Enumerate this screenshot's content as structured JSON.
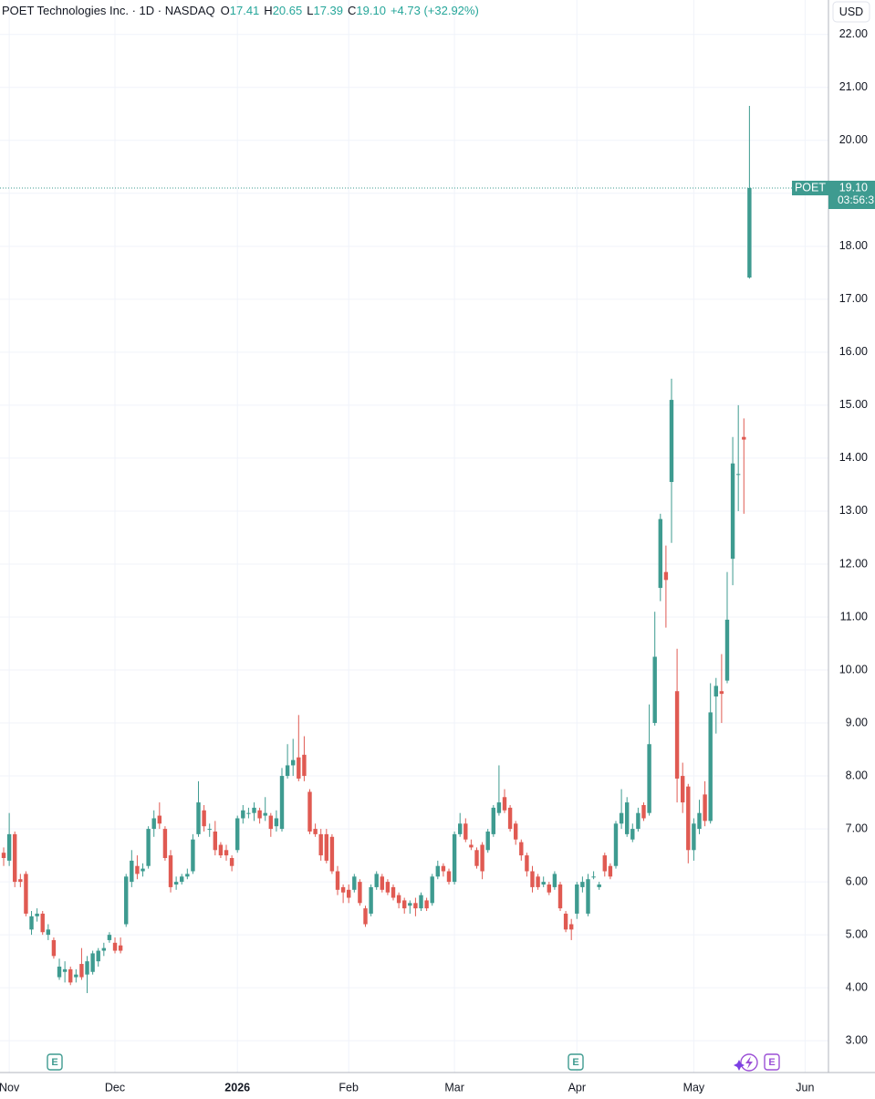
{
  "chart_data": {
    "type": "candlestick",
    "title": "POET Technologies Inc. · 1D · NASDAQ",
    "ohlc_legend": [
      {
        "label": "O",
        "value": "17.41"
      },
      {
        "label": "H",
        "value": "20.65"
      },
      {
        "label": "L",
        "value": "17.39"
      },
      {
        "label": "C",
        "value": "19.10"
      }
    ],
    "change": "+4.73 (+32.92%)",
    "currency": "USD",
    "symbol": "POET",
    "last_price_label": "19.10",
    "countdown": "03:56:3",
    "up_color": "#3e9b90",
    "down_color": "#e05a52",
    "grid": true,
    "events": [
      {
        "label": "E"
      },
      {
        "label": "E"
      },
      {
        "label": "E"
      }
    ],
    "ylim": [
      2.4,
      22.65
    ],
    "yticks": [
      {
        "value": 3,
        "label": "3.00"
      },
      {
        "value": 4,
        "label": "4.00"
      },
      {
        "value": 5,
        "label": "5.00"
      },
      {
        "value": 6,
        "label": "6.00"
      },
      {
        "value": 7,
        "label": "7.00"
      },
      {
        "value": 8,
        "label": "8.00"
      },
      {
        "value": 9,
        "label": "9.00"
      },
      {
        "value": 10,
        "label": "10.00"
      },
      {
        "value": 11,
        "label": "11.00"
      },
      {
        "value": 12,
        "label": "12.00"
      },
      {
        "value": 13,
        "label": "13.00"
      },
      {
        "value": 14,
        "label": "14.00"
      },
      {
        "value": 15,
        "label": "15.00"
      },
      {
        "value": 16,
        "label": "16.00"
      },
      {
        "value": 17,
        "label": "17.00"
      },
      {
        "value": 18,
        "label": "18.00"
      },
      {
        "value": 19,
        "label": "19.00"
      },
      {
        "value": 20,
        "label": "20.00"
      },
      {
        "value": 21,
        "label": "21.00"
      },
      {
        "value": 22,
        "label": "22.00"
      }
    ],
    "xlim": [
      -0.66,
      148.2
    ],
    "xticks": [
      {
        "value": 1,
        "label": "Nov"
      },
      {
        "value": 20,
        "label": "Dec"
      },
      {
        "value": 42,
        "label": "2026"
      },
      {
        "value": 62,
        "label": "Feb"
      },
      {
        "value": 81,
        "label": "Mar"
      },
      {
        "value": 103,
        "label": "Apr"
      },
      {
        "value": 124,
        "label": "May"
      },
      {
        "value": 144,
        "label": "Jun"
      }
    ],
    "open": [
      6.55,
      6.4,
      6.9,
      6.05,
      6.15,
      5.1,
      5.35,
      5.4,
      5.0,
      4.9,
      4.2,
      4.3,
      4.35,
      4.2,
      4.45,
      4.25,
      4.3,
      4.5,
      4.7,
      4.9,
      4.85,
      4.8,
      5.2,
      6.0,
      6.3,
      6.2,
      6.3,
      7.0,
      7.25,
      7.0,
      6.5,
      5.95,
      6.0,
      6.1,
      6.2,
      6.9,
      7.35,
      7.0,
      6.95,
      6.7,
      6.6,
      6.45,
      6.6,
      7.2,
      7.3,
      7.3,
      7.35,
      7.25,
      7.25,
      7.05,
      7.0,
      8.0,
      8.2,
      8.35,
      8.4,
      7.7,
      7.0,
      6.9,
      6.9,
      6.85,
      6.2,
      5.9,
      5.85,
      5.85,
      6.0,
      5.5,
      5.4,
      5.9,
      6.1,
      6.0,
      5.9,
      5.75,
      5.65,
      5.55,
      5.6,
      5.5,
      5.65,
      5.6,
      6.1,
      6.3,
      6.2,
      6.0,
      6.9,
      7.1,
      6.7,
      6.6,
      6.7,
      6.6,
      6.9,
      7.3,
      7.6,
      7.4,
      7.1,
      6.75,
      6.5,
      6.2,
      6.1,
      5.95,
      5.95,
      5.9,
      5.95,
      5.4,
      5.2,
      5.4,
      5.9,
      5.4,
      6.1,
      5.9,
      6.5,
      6.3,
      6.3,
      7.1,
      6.9,
      6.8,
      7.0,
      7.45,
      7.3,
      9.0,
      11.55,
      11.85,
      13.55,
      9.6,
      8.0,
      7.8,
      6.6,
      7.0,
      7.65,
      7.15,
      9.5,
      9.6,
      9.8,
      12.1,
      13.7,
      14.4,
      17.41
    ],
    "high": [
      6.65,
      7.3,
      6.95,
      6.15,
      6.2,
      5.45,
      5.5,
      5.45,
      5.2,
      4.95,
      4.55,
      4.5,
      4.4,
      4.35,
      4.75,
      4.6,
      4.7,
      4.75,
      4.85,
      5.05,
      4.95,
      4.95,
      6.15,
      6.6,
      6.5,
      6.35,
      7.05,
      7.35,
      7.5,
      7.05,
      6.6,
      6.1,
      6.15,
      6.25,
      6.9,
      7.9,
      7.45,
      7.1,
      7.15,
      6.75,
      6.7,
      6.5,
      7.25,
      7.45,
      7.4,
      7.5,
      7.4,
      7.6,
      7.3,
      7.35,
      8.15,
      8.6,
      8.7,
      9.15,
      8.75,
      7.75,
      7.1,
      7.0,
      7.0,
      6.9,
      6.3,
      5.95,
      5.95,
      6.15,
      6.05,
      5.55,
      5.95,
      6.2,
      6.15,
      6.05,
      5.95,
      5.8,
      5.7,
      5.65,
      5.7,
      5.8,
      5.7,
      6.15,
      6.4,
      6.35,
      6.25,
      6.95,
      7.3,
      7.2,
      6.8,
      6.65,
      6.75,
      7.0,
      7.45,
      8.2,
      7.75,
      7.45,
      7.15,
      6.8,
      6.55,
      6.3,
      6.15,
      6.1,
      6.0,
      6.2,
      6.0,
      5.45,
      5.3,
      6.0,
      6.1,
      6.15,
      6.2,
      6.0,
      6.55,
      6.35,
      7.15,
      7.75,
      7.6,
      7.1,
      7.4,
      7.5,
      9.35,
      11.1,
      12.95,
      12.35,
      15.5,
      10.4,
      8.25,
      7.85,
      7.2,
      7.55,
      7.9,
      9.75,
      9.85,
      10.3,
      11.85,
      14.4,
      15.0,
      14.75,
      20.65
    ],
    "low": [
      6.3,
      6.3,
      5.9,
      5.9,
      5.35,
      5.0,
      5.25,
      5.0,
      4.9,
      4.55,
      4.15,
      4.1,
      4.05,
      4.1,
      4.15,
      3.9,
      4.25,
      4.4,
      4.6,
      4.85,
      4.65,
      4.65,
      5.15,
      5.9,
      6.05,
      6.1,
      6.25,
      6.85,
      7.0,
      6.4,
      5.8,
      5.85,
      5.95,
      6.05,
      6.15,
      6.85,
      6.95,
      6.85,
      6.5,
      6.45,
      6.4,
      6.2,
      6.55,
      7.1,
      7.2,
      7.15,
      7.1,
      7.15,
      6.85,
      6.95,
      6.95,
      7.95,
      8.0,
      7.9,
      7.9,
      6.9,
      6.85,
      6.4,
      6.35,
      6.15,
      5.75,
      5.6,
      5.6,
      5.8,
      5.55,
      5.15,
      5.35,
      5.85,
      5.8,
      5.75,
      5.65,
      5.5,
      5.4,
      5.4,
      5.35,
      5.45,
      5.45,
      5.55,
      6.05,
      6.1,
      5.95,
      5.95,
      6.85,
      6.75,
      6.6,
      6.25,
      6.05,
      6.55,
      6.85,
      7.25,
      7.3,
      6.95,
      6.7,
      6.4,
      6.1,
      5.8,
      5.85,
      5.9,
      5.75,
      5.85,
      5.45,
      5.05,
      4.9,
      5.3,
      5.8,
      5.35,
      6.05,
      5.85,
      6.1,
      6.05,
      6.25,
      7.0,
      6.85,
      6.75,
      6.95,
      7.15,
      7.25,
      8.95,
      11.3,
      10.8,
      12.4,
      7.5,
      7.3,
      6.35,
      6.4,
      6.9,
      7.05,
      7.1,
      8.8,
      9.0,
      9.75,
      11.6,
      13.0,
      12.95,
      17.39
    ],
    "close": [
      6.45,
      6.9,
      6.0,
      6.0,
      5.4,
      5.35,
      5.4,
      5.05,
      5.1,
      4.6,
      4.4,
      4.35,
      4.1,
      4.25,
      4.2,
      4.5,
      4.65,
      4.7,
      4.75,
      5.0,
      4.7,
      4.7,
      6.1,
      6.4,
      6.15,
      6.25,
      7.0,
      7.2,
      7.1,
      6.45,
      5.9,
      6.0,
      6.1,
      6.15,
      6.8,
      7.5,
      7.05,
      7.0,
      6.6,
      6.5,
      6.5,
      6.3,
      7.2,
      7.35,
      7.3,
      7.4,
      7.2,
      7.3,
      7.0,
      7.2,
      8.0,
      8.2,
      8.3,
      7.95,
      8.0,
      6.95,
      6.9,
      6.5,
      6.4,
      6.2,
      5.85,
      5.8,
      5.7,
      6.1,
      5.6,
      5.2,
      5.9,
      6.15,
      5.85,
      5.8,
      5.7,
      5.6,
      5.5,
      5.6,
      5.5,
      5.75,
      5.5,
      6.1,
      6.3,
      6.2,
      6.0,
      6.9,
      7.1,
      6.8,
      6.65,
      6.3,
      6.2,
      6.95,
      7.4,
      7.5,
      7.35,
      7.0,
      6.8,
      6.5,
      6.2,
      5.9,
      5.9,
      6.0,
      5.8,
      6.15,
      5.5,
      5.1,
      5.1,
      5.95,
      6.0,
      6.05,
      6.1,
      5.95,
      6.2,
      6.1,
      7.1,
      7.3,
      7.5,
      7.0,
      7.3,
      7.2,
      8.6,
      10.25,
      12.85,
      11.7,
      15.1,
      7.95,
      7.5,
      6.6,
      7.1,
      7.3,
      7.15,
      9.2,
      9.7,
      9.55,
      10.95,
      13.9,
      13.7,
      14.35,
      19.1
    ]
  }
}
